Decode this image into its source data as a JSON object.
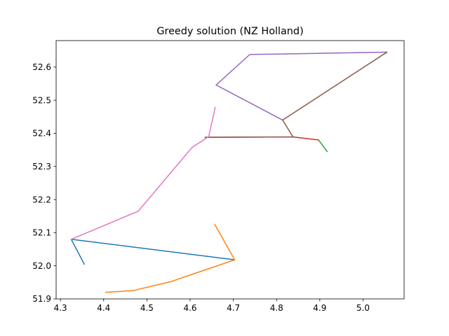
{
  "chart_data": {
    "type": "line",
    "title": "Greedy solution (NZ Holland)",
    "xlabel": "",
    "ylabel": "",
    "xlim": [
      4.29,
      5.095
    ],
    "ylim": [
      51.9,
      52.68
    ],
    "grid": false,
    "x_ticks": [
      4.3,
      4.4,
      4.5,
      4.6,
      4.7,
      4.8,
      4.9,
      5.0
    ],
    "x_tick_labels": [
      "4.3",
      "4.4",
      "4.5",
      "4.6",
      "4.7",
      "4.8",
      "4.9",
      "5.0"
    ],
    "y_ticks": [
      51.9,
      52.0,
      52.1,
      52.2,
      52.3,
      52.4,
      52.5,
      52.6
    ],
    "y_tick_labels": [
      "51.9",
      "52.0",
      "52.1",
      "52.2",
      "52.3",
      "52.4",
      "52.5",
      "52.6"
    ],
    "series": [
      {
        "color": "#1f77b4",
        "points": [
          [
            4.355,
            52.005
          ],
          [
            4.325,
            52.08
          ],
          [
            4.703,
            52.018
          ]
        ]
      },
      {
        "color": "#ff7f0e",
        "points": [
          [
            4.657,
            52.125
          ],
          [
            4.703,
            52.018
          ],
          [
            4.555,
            51.952
          ],
          [
            4.468,
            51.925
          ],
          [
            4.405,
            51.92
          ]
        ]
      },
      {
        "color": "#2ca02c",
        "points": [
          [
            4.917,
            52.345
          ],
          [
            4.897,
            52.38
          ]
        ]
      },
      {
        "color": "#d62728",
        "points": [
          [
            4.897,
            52.38
          ],
          [
            4.838,
            52.389
          ],
          [
            4.635,
            52.388
          ]
        ]
      },
      {
        "color": "#9467bd",
        "points": [
          [
            4.814,
            52.44
          ],
          [
            4.66,
            52.546
          ],
          [
            4.738,
            52.638
          ],
          [
            5.055,
            52.645
          ]
        ]
      },
      {
        "color": "#8c564b",
        "points": [
          [
            5.055,
            52.645
          ],
          [
            4.814,
            52.44
          ],
          [
            4.838,
            52.389
          ],
          [
            4.635,
            52.388
          ]
        ]
      },
      {
        "color": "#e377c2",
        "points": [
          [
            4.658,
            52.478
          ],
          [
            4.643,
            52.39
          ],
          [
            4.605,
            52.358
          ],
          [
            4.48,
            52.165
          ],
          [
            4.325,
            52.08
          ]
        ]
      }
    ]
  }
}
